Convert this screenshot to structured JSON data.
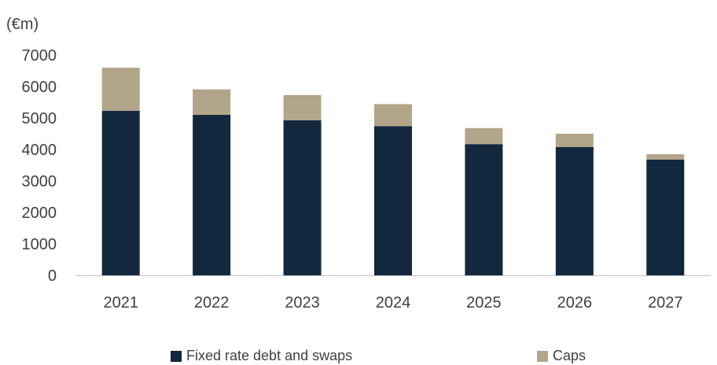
{
  "chart_data": {
    "type": "bar",
    "stacked": true,
    "unit_label": "(€m)",
    "categories": [
      "2021",
      "2022",
      "2023",
      "2024",
      "2025",
      "2026",
      "2027"
    ],
    "series": [
      {
        "name": "Fixed rate debt and swaps",
        "color": "#13273f",
        "values": [
          5230,
          5100,
          4930,
          4740,
          4170,
          4080,
          3680
        ]
      },
      {
        "name": "Caps",
        "color": "#b3a58a",
        "values": [
          1370,
          810,
          800,
          700,
          510,
          420,
          170
        ]
      }
    ],
    "ylim": [
      0,
      7000
    ],
    "yticks": [
      0,
      1000,
      2000,
      3000,
      4000,
      5000,
      6000,
      7000
    ],
    "grid": false,
    "legend_position": "bottom"
  }
}
